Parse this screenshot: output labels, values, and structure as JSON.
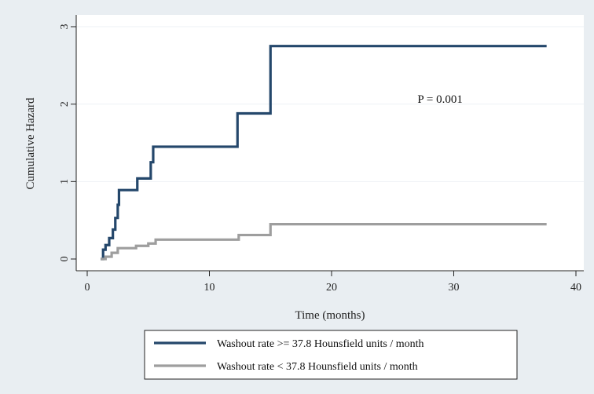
{
  "chart_data": {
    "type": "line",
    "xlabel": "Time (months)",
    "ylabel": "Cumulative Hazard",
    "xlim": [
      0,
      40
    ],
    "ylim": [
      0,
      3
    ],
    "xticks": [
      0,
      10,
      20,
      30,
      40
    ],
    "yticks": [
      0,
      1,
      2,
      3
    ],
    "grid": true,
    "legend_position": "bottom",
    "annotations": [
      {
        "text": "P = 0.001",
        "x": 28,
        "y": 2.07
      }
    ],
    "series": [
      {
        "name": "Washout rate >= 37.8 Hounsfield units / month",
        "color": "#24476b",
        "step": true,
        "x": [
          1.1,
          1.3,
          1.5,
          1.8,
          2.1,
          2.3,
          2.5,
          2.6,
          4.1,
          5.2,
          5.4,
          12.3,
          15.0,
          37.6
        ],
        "y": [
          0.0,
          0.12,
          0.18,
          0.27,
          0.38,
          0.53,
          0.7,
          0.89,
          1.04,
          1.25,
          1.45,
          1.88,
          2.75,
          2.75
        ]
      },
      {
        "name": "Washout rate < 37.8 Hounsfield units / month",
        "color": "#9e9e9e",
        "step": true,
        "x": [
          1.1,
          1.5,
          2.0,
          2.5,
          4.0,
          5.0,
          5.6,
          12.4,
          15.0,
          37.6
        ],
        "y": [
          0.0,
          0.03,
          0.08,
          0.14,
          0.17,
          0.2,
          0.25,
          0.31,
          0.45,
          0.45
        ]
      }
    ]
  }
}
